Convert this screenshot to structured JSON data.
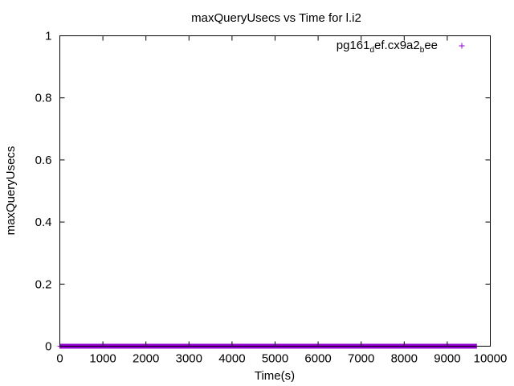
{
  "chart_data": {
    "type": "scatter",
    "title": "maxQueryUsecs vs Time for l.i2",
    "xlabel": "Time(s)",
    "ylabel": "maxQueryUsecs",
    "xlim": [
      0,
      10000
    ],
    "ylim": [
      0,
      1
    ],
    "x_ticks": [
      0,
      1000,
      2000,
      3000,
      4000,
      5000,
      6000,
      7000,
      8000,
      9000,
      10000
    ],
    "x_tick_labels": [
      "0",
      "1000",
      "2000",
      "3000",
      "4000",
      "5000",
      "6000",
      "7000",
      "8000",
      "9000",
      "10000"
    ],
    "y_ticks": [
      0,
      0.2,
      0.4,
      0.6,
      0.8,
      1
    ],
    "y_tick_labels": [
      "0",
      "0.2",
      "0.4",
      "0.6",
      "0.8",
      "1"
    ],
    "grid": false,
    "legend_position": "top-right",
    "series": [
      {
        "name_parts": [
          {
            "text": "pg161",
            "sub": false
          },
          {
            "text": "d",
            "sub": true
          },
          {
            "text": "ef.cx9a2",
            "sub": false
          },
          {
            "text": "b",
            "sub": true
          },
          {
            "text": "ee",
            "sub": false
          }
        ],
        "color": "#9400d3",
        "marker": "plus",
        "x_start": 0,
        "x_end": 9680,
        "x_step": 10,
        "y_value": 0
      }
    ]
  }
}
